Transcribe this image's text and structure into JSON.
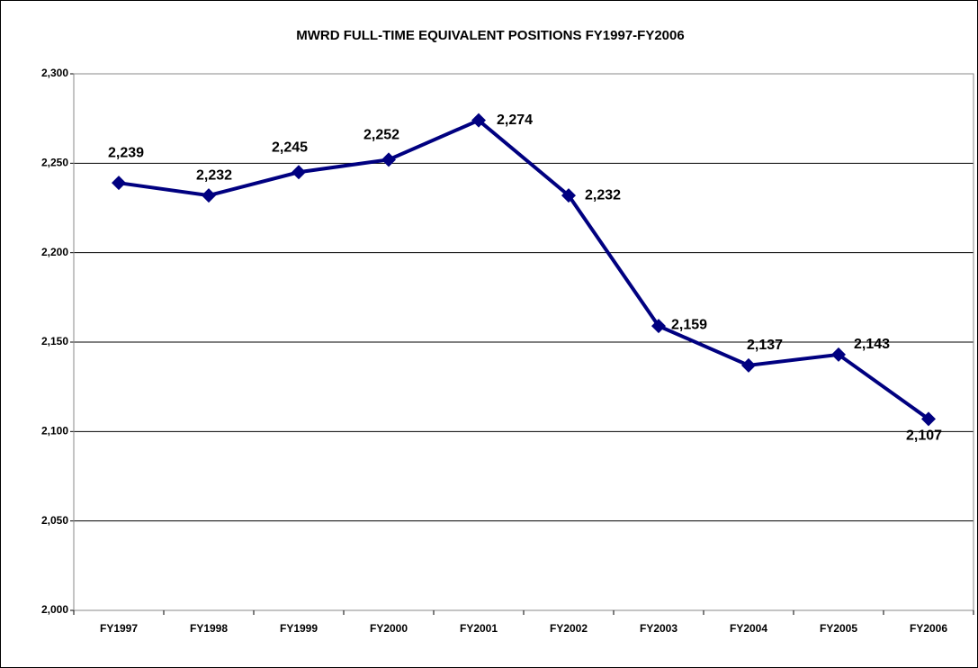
{
  "chart_data": {
    "type": "line",
    "title": "MWRD FULL-TIME EQUIVALENT POSITIONS FY1997-FY2006",
    "categories": [
      "FY1997",
      "FY1998",
      "FY1999",
      "FY2000",
      "FY2001",
      "FY2002",
      "FY2003",
      "FY2004",
      "FY2005",
      "FY2006"
    ],
    "values": [
      2239,
      2232,
      2245,
      2252,
      2274,
      2232,
      2159,
      2137,
      2143,
      2107
    ],
    "value_labels": [
      "2,239",
      "2,232",
      "2,245",
      "2,252",
      "2,274",
      "2,232",
      "2,159",
      "2,137",
      "2,143",
      "2,107"
    ],
    "color": "#000080",
    "ylim": [
      2000,
      2300
    ],
    "yticks": [
      {
        "value": 2000,
        "label": "2,000"
      },
      {
        "value": 2050,
        "label": "2,050"
      },
      {
        "value": 2100,
        "label": "2,100"
      },
      {
        "value": 2150,
        "label": "2,150"
      },
      {
        "value": 2200,
        "label": "2,200"
      },
      {
        "value": 2250,
        "label": "2,250"
      },
      {
        "value": 2300,
        "label": "2,300"
      }
    ],
    "grid": true
  }
}
